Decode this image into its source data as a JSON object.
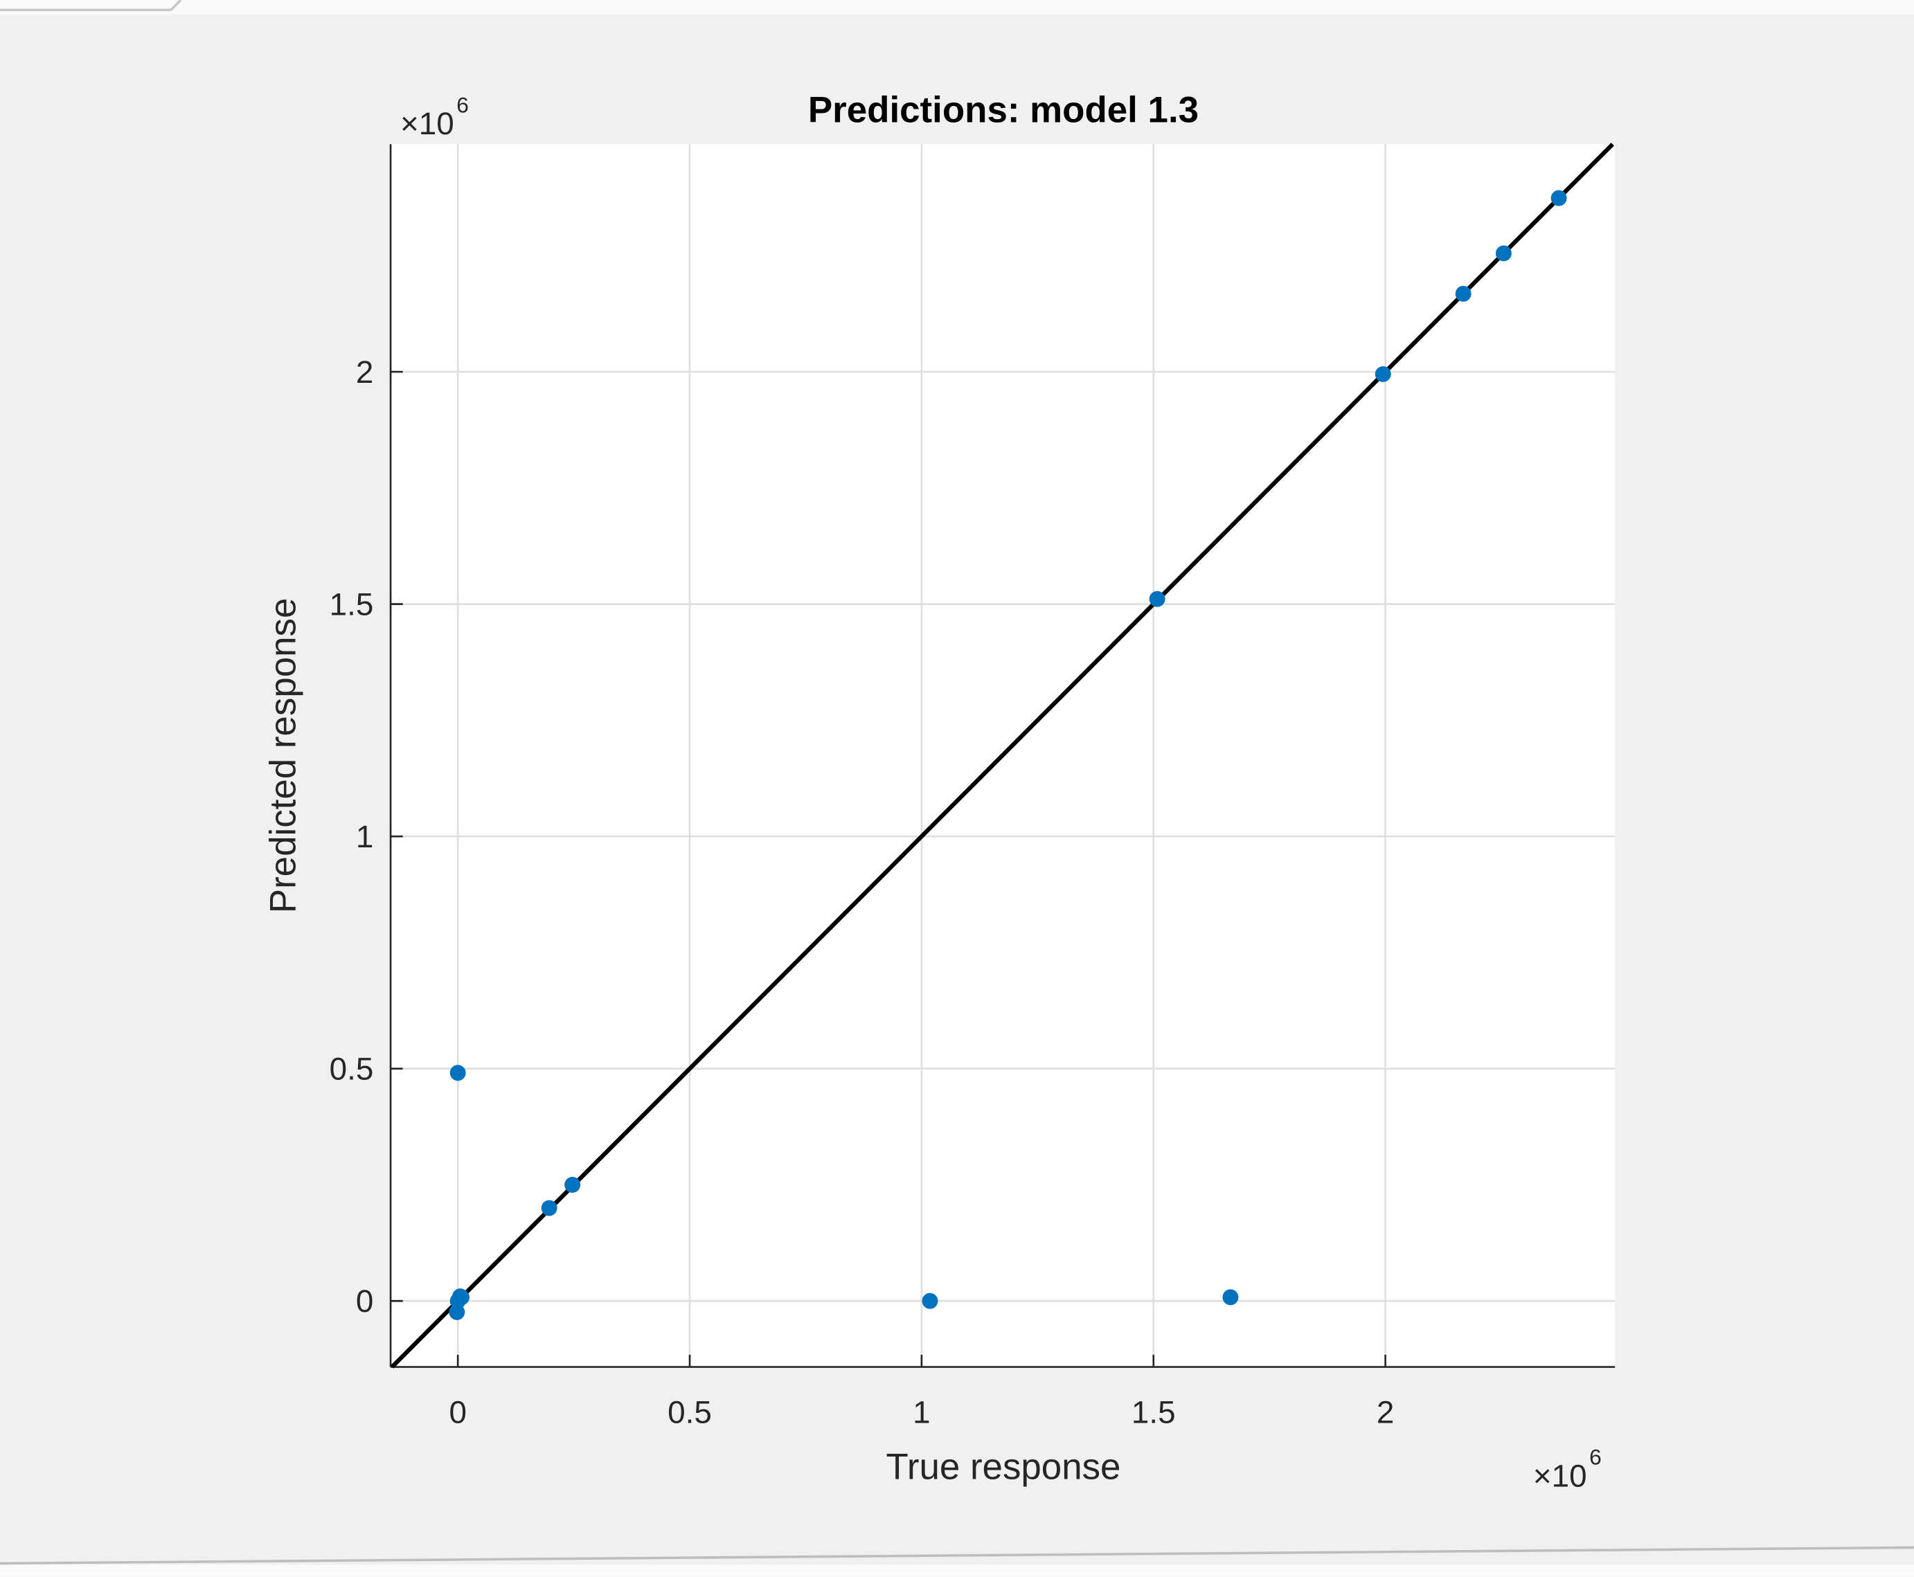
{
  "chart_data": {
    "type": "scatter",
    "title": "Predictions: model 1.3",
    "xlabel": "True response",
    "ylabel": "Predicted response",
    "x_multiplier": "×10",
    "x_multiplier_exp": "6",
    "y_multiplier": "×10",
    "y_multiplier_exp": "6",
    "series": [
      {
        "color": "#0072bd",
        "x": [
          0,
          0.197,
          0.247,
          0,
          0.005,
          -0.002,
          0.008,
          1.018,
          1.666,
          1.508,
          1.995,
          2.168,
          2.255,
          2.374
        ],
        "values": [
          0.491,
          0.2,
          0.25,
          0,
          0.01,
          -0.024,
          0.008,
          0,
          0.008,
          1.511,
          1.995,
          2.168,
          2.255,
          2.374
        ]
      }
    ],
    "reference_line_color": "#000000",
    "xlim": [
      -0.145,
      2.495
    ],
    "ylim": [
      -0.142,
      2.49
    ],
    "xticks": [
      0,
      0.5,
      1,
      1.5,
      2
    ],
    "yticks": [
      0,
      0.5,
      1,
      1.5,
      2
    ],
    "grid": true
  }
}
